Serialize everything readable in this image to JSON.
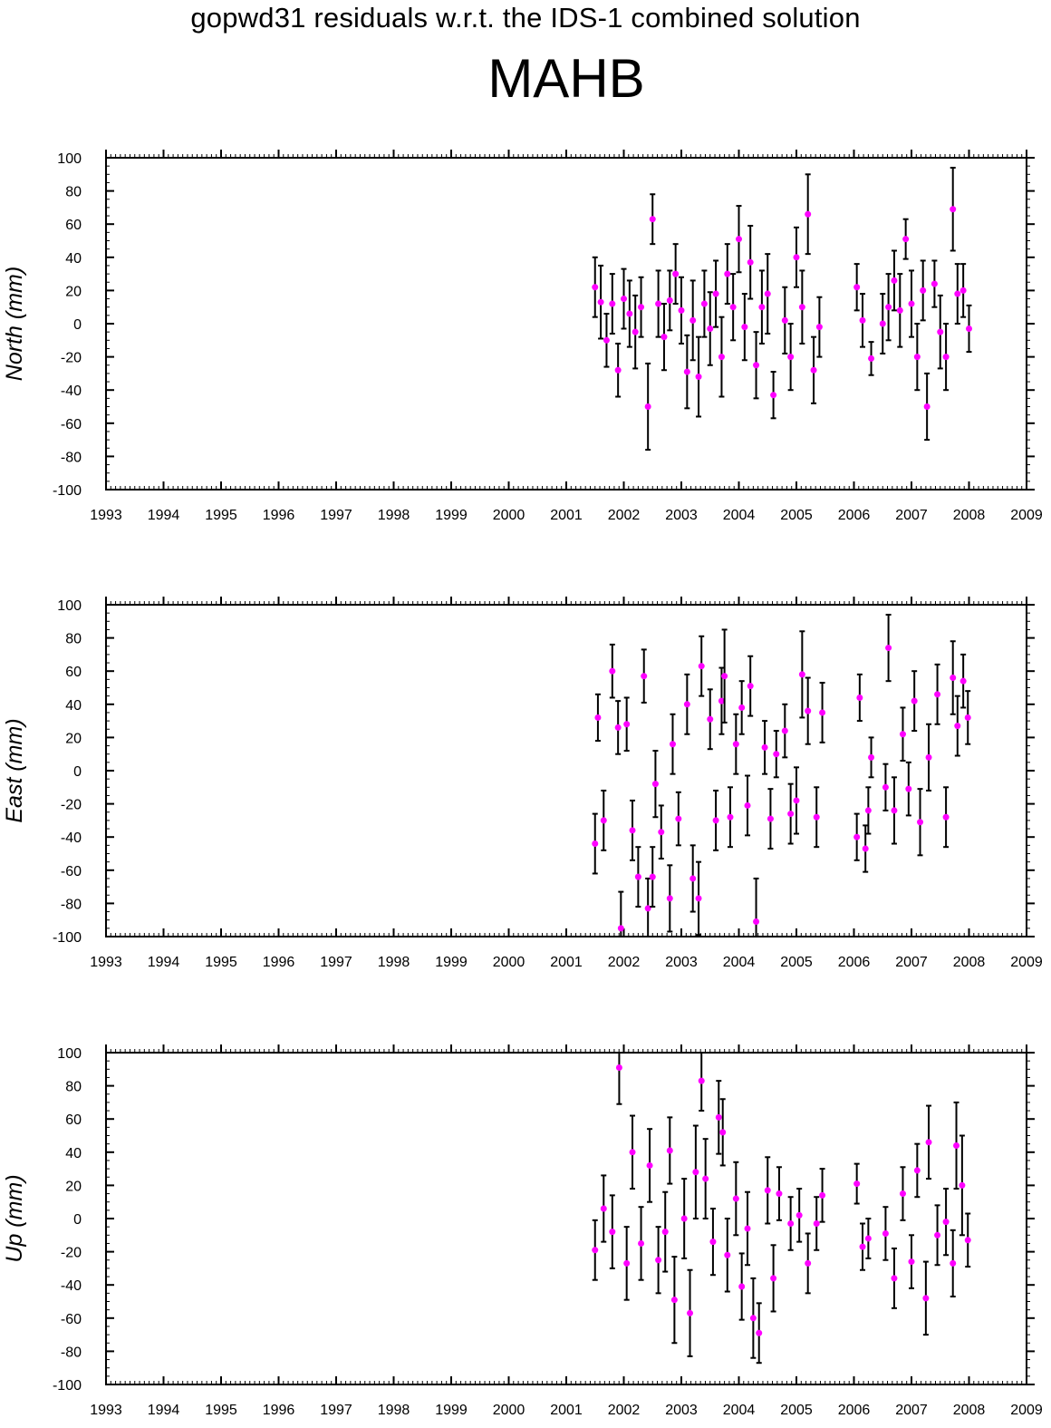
{
  "figure": {
    "suptitle": "gopwd31 residuals w.r.t. the IDS-1 combined solution",
    "station": "MAHB"
  },
  "colors": {
    "marker": "#ff00ff",
    "errorbar": "#000000",
    "axes": "#000000"
  },
  "chart_data": [
    {
      "type": "scatter",
      "ylabel": "North (mm)",
      "xlim": [
        1993,
        2009
      ],
      "ylim": [
        -100,
        100
      ],
      "xticks": [
        "1993",
        "1994",
        "1995",
        "1996",
        "1997",
        "1998",
        "1999",
        "2000",
        "2001",
        "2002",
        "2003",
        "2004",
        "2005",
        "2006",
        "2007",
        "2008",
        "2009"
      ],
      "yticks": [
        "100",
        "80",
        "60",
        "40",
        "20",
        "0",
        "-20",
        "-40",
        "-60",
        "-80",
        "-100"
      ],
      "series": [
        {
          "name": "",
          "errorbars": true,
          "x": [
            2001.5,
            2001.6,
            2001.7,
            2001.8,
            2001.9,
            2002.0,
            2002.1,
            2002.2,
            2002.3,
            2002.42,
            2002.5,
            2002.6,
            2002.7,
            2002.8,
            2002.9,
            2003.0,
            2003.1,
            2003.2,
            2003.3,
            2003.4,
            2003.5,
            2003.6,
            2003.7,
            2003.8,
            2003.9,
            2004.0,
            2004.1,
            2004.2,
            2004.3,
            2004.4,
            2004.5,
            2004.6,
            2004.8,
            2004.9,
            2005.0,
            2005.1,
            2005.2,
            2005.3,
            2005.4,
            2006.05,
            2006.15,
            2006.3,
            2006.5,
            2006.6,
            2006.7,
            2006.8,
            2006.9,
            2007.0,
            2007.1,
            2007.2,
            2007.27,
            2007.4,
            2007.5,
            2007.6,
            2007.72,
            2007.8,
            2007.9,
            2008.0
          ],
          "y": [
            22,
            13,
            -10,
            12,
            -28,
            15,
            6,
            -5,
            10,
            -50,
            63,
            12,
            -8,
            14,
            30,
            8,
            -29,
            2,
            -32,
            12,
            -3,
            18,
            -20,
            30,
            10,
            51,
            -2,
            37,
            -25,
            10,
            18,
            -43,
            2,
            -20,
            40,
            10,
            66,
            -28,
            -2,
            22,
            2,
            -21,
            0,
            10,
            26,
            8,
            51,
            12,
            -20,
            20,
            -50,
            24,
            -5,
            -20,
            69,
            18,
            20,
            -3
          ],
          "err": [
            18,
            22,
            16,
            18,
            16,
            18,
            20,
            22,
            18,
            26,
            15,
            20,
            20,
            18,
            18,
            20,
            22,
            24,
            24,
            20,
            22,
            20,
            24,
            18,
            20,
            20,
            20,
            22,
            20,
            22,
            24,
            14,
            20,
            20,
            18,
            22,
            24,
            20,
            18,
            14,
            16,
            10,
            18,
            20,
            18,
            22,
            12,
            20,
            20,
            18,
            20,
            14,
            22,
            20,
            25,
            18,
            16,
            14
          ]
        }
      ]
    },
    {
      "type": "scatter",
      "ylabel": "East (mm)",
      "xlim": [
        1993,
        2009
      ],
      "ylim": [
        -100,
        100
      ],
      "xticks": [
        "1993",
        "1994",
        "1995",
        "1996",
        "1997",
        "1998",
        "1999",
        "2000",
        "2001",
        "2002",
        "2003",
        "2004",
        "2005",
        "2006",
        "2007",
        "2008",
        "2009"
      ],
      "yticks": [
        "100",
        "80",
        "60",
        "40",
        "20",
        "0",
        "-20",
        "-40",
        "-60",
        "-80",
        "-100"
      ],
      "series": [
        {
          "name": "",
          "errorbars": true,
          "x": [
            2001.5,
            2001.55,
            2001.65,
            2001.8,
            2001.9,
            2001.95,
            2002.05,
            2002.15,
            2002.25,
            2002.35,
            2002.42,
            2002.5,
            2002.55,
            2002.65,
            2002.8,
            2002.85,
            2002.95,
            2003.1,
            2003.2,
            2003.3,
            2003.35,
            2003.5,
            2003.6,
            2003.7,
            2003.75,
            2003.85,
            2003.95,
            2004.05,
            2004.15,
            2004.2,
            2004.3,
            2004.45,
            2004.55,
            2004.65,
            2004.8,
            2004.9,
            2005.0,
            2005.1,
            2005.2,
            2005.35,
            2005.45,
            2006.05,
            2006.1,
            2006.2,
            2006.25,
            2006.3,
            2006.55,
            2006.6,
            2006.7,
            2006.85,
            2006.95,
            2007.05,
            2007.15,
            2007.3,
            2007.45,
            2007.6,
            2007.72,
            2007.8,
            2007.9,
            2007.98
          ],
          "y": [
            -44,
            32,
            -30,
            60,
            26,
            -95,
            28,
            -36,
            -64,
            57,
            -83,
            -64,
            -8,
            -37,
            -77,
            16,
            -29,
            40,
            -65,
            -77,
            63,
            31,
            -30,
            42,
            57,
            -28,
            16,
            38,
            -21,
            51,
            -91,
            14,
            -29,
            10,
            24,
            -26,
            -18,
            58,
            36,
            -28,
            35,
            -40,
            44,
            -47,
            -24,
            8,
            -10,
            74,
            -24,
            22,
            -11,
            42,
            -31,
            8,
            46,
            -28,
            56,
            27,
            54,
            32
          ],
          "err": [
            18,
            14,
            18,
            16,
            16,
            22,
            16,
            18,
            18,
            16,
            18,
            18,
            20,
            16,
            20,
            18,
            16,
            18,
            20,
            22,
            18,
            18,
            18,
            20,
            28,
            18,
            18,
            16,
            18,
            18,
            26,
            16,
            18,
            14,
            16,
            18,
            20,
            26,
            20,
            18,
            18,
            14,
            14,
            14,
            14,
            12,
            14,
            20,
            20,
            16,
            16,
            18,
            20,
            20,
            18,
            18,
            22,
            18,
            16,
            16
          ]
        }
      ]
    },
    {
      "type": "scatter",
      "ylabel": "Up (mm)",
      "xlim": [
        1993,
        2009
      ],
      "ylim": [
        -100,
        100
      ],
      "xticks": [
        "1993",
        "1994",
        "1995",
        "1996",
        "1997",
        "1998",
        "1999",
        "2000",
        "2001",
        "2002",
        "2003",
        "2004",
        "2005",
        "2006",
        "2007",
        "2008",
        "2009"
      ],
      "yticks": [
        "100",
        "80",
        "60",
        "40",
        "20",
        "0",
        "-20",
        "-40",
        "-60",
        "-80",
        "-100"
      ],
      "series": [
        {
          "name": "",
          "errorbars": true,
          "x": [
            2001.5,
            2001.65,
            2001.8,
            2001.92,
            2002.05,
            2002.15,
            2002.3,
            2002.45,
            2002.6,
            2002.72,
            2002.8,
            2002.88,
            2003.05,
            2003.15,
            2003.25,
            2003.35,
            2003.42,
            2003.55,
            2003.65,
            2003.72,
            2003.8,
            2003.95,
            2004.05,
            2004.15,
            2004.25,
            2004.35,
            2004.5,
            2004.6,
            2004.7,
            2004.9,
            2005.05,
            2005.2,
            2005.35,
            2005.45,
            2006.05,
            2006.15,
            2006.25,
            2006.55,
            2006.7,
            2006.85,
            2007.0,
            2007.1,
            2007.25,
            2007.3,
            2007.45,
            2007.6,
            2007.72,
            2007.78,
            2007.88,
            2007.98
          ],
          "y": [
            -19,
            6,
            -8,
            91,
            -27,
            40,
            -15,
            32,
            -25,
            -8,
            41,
            -49,
            0,
            -57,
            28,
            83,
            24,
            -14,
            61,
            52,
            -22,
            12,
            -41,
            -6,
            -60,
            -69,
            17,
            -36,
            15,
            -3,
            2,
            -27,
            -3,
            14,
            21,
            -17,
            -12,
            -9,
            -36,
            15,
            -26,
            29,
            -48,
            46,
            -10,
            -2,
            -27,
            44,
            20,
            -13
          ],
          "err": [
            18,
            20,
            22,
            22,
            22,
            22,
            22,
            22,
            20,
            24,
            20,
            26,
            24,
            26,
            28,
            18,
            24,
            20,
            22,
            20,
            22,
            22,
            20,
            22,
            24,
            18,
            20,
            20,
            16,
            16,
            16,
            18,
            16,
            16,
            12,
            14,
            12,
            16,
            18,
            16,
            16,
            16,
            22,
            22,
            18,
            20,
            20,
            26,
            30,
            16
          ]
        }
      ]
    }
  ]
}
